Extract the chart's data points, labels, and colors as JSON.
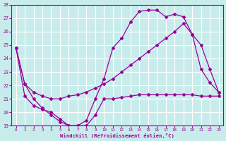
{
  "xlabel": "Windchill (Refroidissement éolien,°C)",
  "xlim": [
    -0.5,
    23.5
  ],
  "ylim": [
    19,
    28
  ],
  "yticks": [
    19,
    20,
    21,
    22,
    23,
    24,
    25,
    26,
    27,
    28
  ],
  "xticks": [
    0,
    1,
    2,
    3,
    4,
    5,
    6,
    7,
    8,
    9,
    10,
    11,
    12,
    13,
    14,
    15,
    16,
    17,
    18,
    19,
    20,
    21,
    22,
    23
  ],
  "bg_color": "#c8ecec",
  "grid_color": "#b0d8d8",
  "line_color": "#990099",
  "lines": [
    {
      "x": [
        0,
        1,
        2,
        3,
        4,
        5,
        6,
        7,
        8,
        9,
        10,
        11,
        12,
        13,
        14,
        15,
        16,
        17,
        18,
        19,
        20,
        21,
        22,
        23
      ],
      "y": [
        24.8,
        22.1,
        21.0,
        20.3,
        19.8,
        19.3,
        19.0,
        19.0,
        19.4,
        21.0,
        22.5,
        24.8,
        25.5,
        26.7,
        27.5,
        27.6,
        27.6,
        27.1,
        27.3,
        27.1,
        25.8,
        23.2,
        22.2,
        21.5
      ]
    },
    {
      "x": [
        0,
        1,
        2,
        3,
        4,
        5,
        6,
        7,
        8,
        9,
        10,
        11,
        12,
        13,
        14,
        15,
        16,
        17,
        18,
        19,
        20,
        21,
        22,
        23
      ],
      "y": [
        24.8,
        22.1,
        21.5,
        21.2,
        21.0,
        21.0,
        21.2,
        21.3,
        21.5,
        21.8,
        22.1,
        22.5,
        23.0,
        23.5,
        24.0,
        24.5,
        25.0,
        25.5,
        26.0,
        26.6,
        25.8,
        25.0,
        23.2,
        21.5
      ]
    },
    {
      "x": [
        0,
        1,
        2,
        3,
        4,
        5,
        6,
        7,
        8,
        9,
        10,
        11,
        12,
        13,
        14,
        15,
        16,
        17,
        18,
        19,
        20,
        21,
        22,
        23
      ],
      "y": [
        24.8,
        21.2,
        20.5,
        20.2,
        20.0,
        19.5,
        19.0,
        19.0,
        19.0,
        19.8,
        21.0,
        21.0,
        21.1,
        21.2,
        21.3,
        21.3,
        21.3,
        21.3,
        21.3,
        21.3,
        21.3,
        21.2,
        21.2,
        21.2
      ]
    }
  ],
  "marker": "D",
  "markersize": 2.0,
  "linewidth": 0.9
}
